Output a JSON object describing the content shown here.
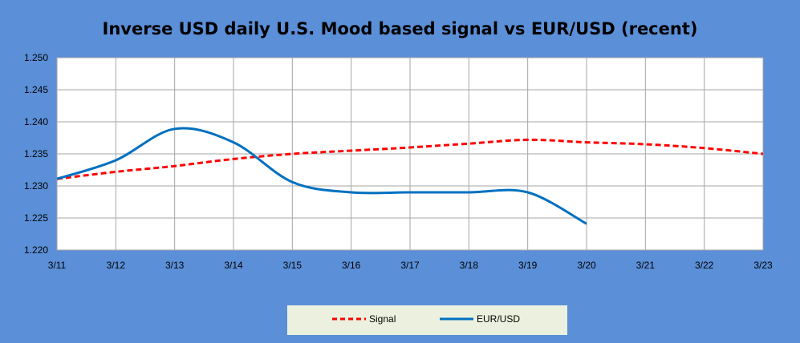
{
  "chart_data": {
    "type": "line",
    "title": "Inverse USD daily U.S. Mood based signal vs EUR/USD (recent)",
    "categories": [
      "3/11",
      "3/12",
      "3/13",
      "3/14",
      "3/15",
      "3/16",
      "3/17",
      "3/18",
      "3/19",
      "3/20",
      "3/21",
      "3/22",
      "3/23"
    ],
    "yticks": [
      "1.220",
      "1.225",
      "1.230",
      "1.235",
      "1.240",
      "1.245",
      "1.250"
    ],
    "ylim": [
      1.22,
      1.25
    ],
    "grid": true,
    "legend_position": "bottom",
    "series": [
      {
        "name": "Signal",
        "style": "dashed",
        "color": "#FF0000",
        "points": [
          [
            0,
            1.2311
          ],
          [
            1,
            1.2322
          ],
          [
            2,
            1.2331
          ],
          [
            3,
            1.2342
          ],
          [
            4,
            1.235
          ],
          [
            5,
            1.2355
          ],
          [
            6,
            1.236
          ],
          [
            7,
            1.2366
          ],
          [
            8,
            1.2372
          ],
          [
            9,
            1.2368
          ],
          [
            10,
            1.2365
          ],
          [
            11,
            1.2359
          ],
          [
            12,
            1.235
          ]
        ]
      },
      {
        "name": "EUR/USD",
        "style": "solid",
        "color": "#0070C0",
        "points": [
          [
            0,
            1.2311
          ],
          [
            1,
            1.234
          ],
          [
            2,
            1.2389
          ],
          [
            3,
            1.2368
          ],
          [
            4,
            1.2306
          ],
          [
            5,
            1.229
          ],
          [
            6,
            1.229
          ],
          [
            7,
            1.229
          ],
          [
            8,
            1.229
          ],
          [
            9,
            1.2241
          ]
        ]
      }
    ]
  }
}
